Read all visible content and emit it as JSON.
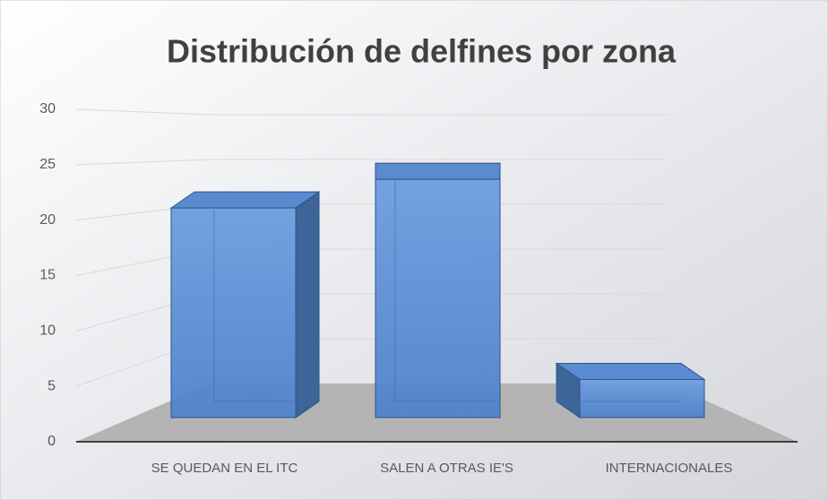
{
  "chart_data": {
    "type": "bar3d",
    "title": "Distribución de delfines por zona",
    "categories": [
      "SE QUEDAN EN EL ITC",
      "SALEN A OTRAS IE'S",
      "INTERNACIONALES"
    ],
    "values": [
      22,
      25,
      4
    ],
    "color": "#5b8fd6",
    "ylim": [
      0,
      30
    ],
    "yticks": [
      0,
      5,
      10,
      15,
      20,
      25,
      30
    ],
    "grid": true
  }
}
